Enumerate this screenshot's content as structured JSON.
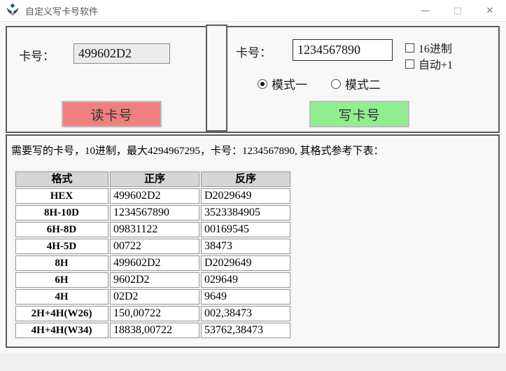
{
  "window": {
    "title": "自定义写卡号软件",
    "minimize": "—",
    "maximize": "□",
    "close": "✕"
  },
  "read_section": {
    "card_label": "卡号：",
    "card_value": "499602D2",
    "read_button": "读卡号"
  },
  "write_section": {
    "card_label": "卡号：",
    "card_value": "1234567890",
    "checkbox_hex": "16进制",
    "checkbox_auto": "自动+1",
    "radio_mode1": "模式一",
    "radio_mode2": "模式二",
    "write_button": "写卡号"
  },
  "info_text": "需要写的卡号，10进制，最大4294967295，卡号：1234567890, 其格式参考下表：",
  "table": {
    "headers": [
      "格式",
      "正序",
      "反序"
    ],
    "rows": [
      [
        "HEX",
        "499602D2",
        "D2029649"
      ],
      [
        "8H-10D",
        "1234567890",
        "3523384905"
      ],
      [
        "6H-8D",
        "09831122",
        "00169545"
      ],
      [
        "4H-5D",
        "00722",
        "38473"
      ],
      [
        "8H",
        "499602D2",
        "D2029649"
      ],
      [
        "6H",
        "9602D2",
        "029649"
      ],
      [
        "4H",
        "02D2",
        "9649"
      ],
      [
        "2H+4H(W26)",
        "150,00722",
        "002,38473"
      ],
      [
        "4H+4H(W34)",
        "18838,00722",
        "53762,38473"
      ]
    ]
  },
  "colors": {
    "read_button_bg": "#f08080",
    "write_button_bg": "#90ee90",
    "table_header_bg": "#d6d6d6",
    "logo_blue": "#1c4f9c",
    "logo_orange": "#e8953a"
  }
}
